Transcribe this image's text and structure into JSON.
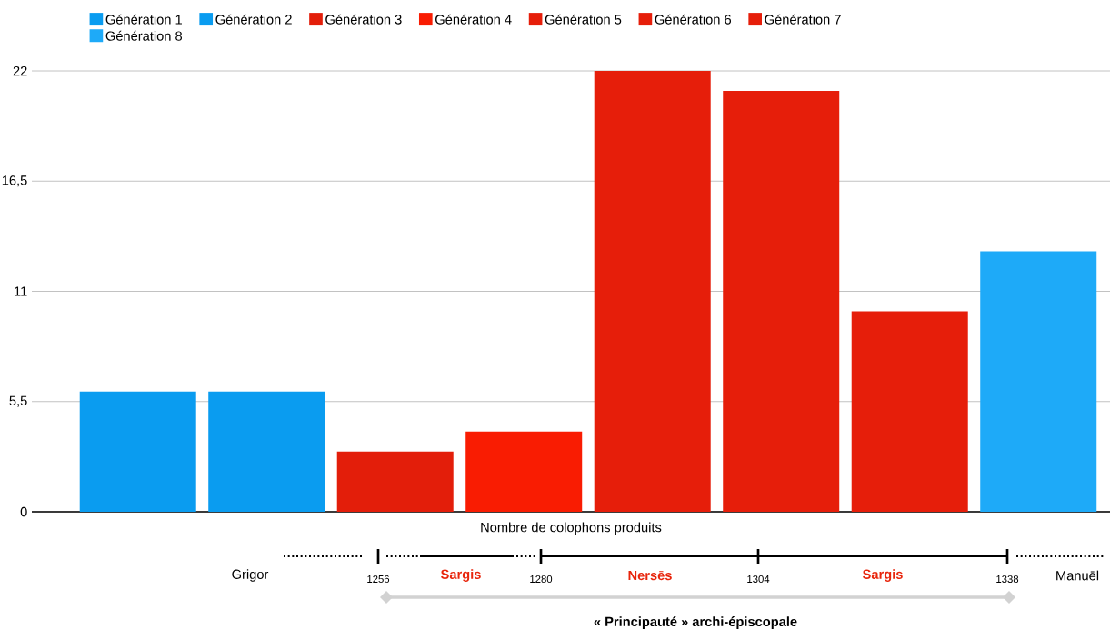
{
  "chart_data": {
    "type": "bar",
    "categories": [
      null
    ],
    "xlabel": "Nombre de colophons produits",
    "series": [
      {
        "name": "Génération 1",
        "color": "#0a9cf0",
        "values": [
          6
        ]
      },
      {
        "name": "Génération 2",
        "color": "#0a9cf0",
        "values": [
          6
        ]
      },
      {
        "name": "Génération 3",
        "color": "#e31e0a",
        "values": [
          3
        ]
      },
      {
        "name": "Génération 4",
        "color": "#f91c02",
        "values": [
          4
        ]
      },
      {
        "name": "Génération 5",
        "color": "#e61e0a",
        "values": [
          22
        ]
      },
      {
        "name": "Génération 6",
        "color": "#e61e0a",
        "values": [
          21
        ]
      },
      {
        "name": "Génération 7",
        "color": "#e61e0a",
        "values": [
          10
        ]
      },
      {
        "name": "Génération 8",
        "color": "#1eaaf8",
        "values": [
          13
        ]
      }
    ],
    "ylim": [
      0,
      22
    ],
    "yticks": [
      0,
      {
        "value": 5.5,
        "label": "5,5"
      },
      11,
      {
        "value": 16.5,
        "label": "16,5"
      },
      22
    ],
    "grid": "y",
    "legend": "top",
    "annotations": [
      "Grigor",
      "1256",
      "Sargis",
      "1280",
      "Nersēs",
      "1304",
      "Sargis",
      "1338",
      "Manuēl",
      "« Principauté » archi-épiscopale"
    ]
  }
}
